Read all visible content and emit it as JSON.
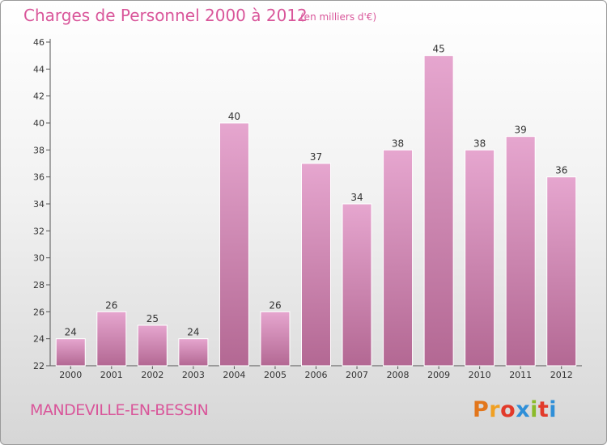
{
  "header": {
    "title": "Charges de Personnel 2000 à 2012",
    "subtitle": "(en milliers d'€)"
  },
  "footer": {
    "commune": "MANDEVILLE-EN-BESSIN",
    "logo": "Proxiti",
    "logo_colors": [
      "#e2761b",
      "#f0a023",
      "#e23a2a",
      "#2f8fd8",
      "#8bbb2a",
      "#e23a2a",
      "#2f8fd8"
    ]
  },
  "chart_data": {
    "type": "bar",
    "title": "Charges de Personnel 2000 à 2012",
    "subtitle": "(en milliers d'€)",
    "categories": [
      "2000",
      "2001",
      "2002",
      "2003",
      "2004",
      "2005",
      "2006",
      "2007",
      "2008",
      "2009",
      "2010",
      "2011",
      "2012"
    ],
    "values": [
      24,
      26,
      25,
      24,
      40,
      26,
      37,
      34,
      38,
      45,
      38,
      39,
      36
    ],
    "ylim": [
      22,
      46
    ],
    "yticks": [
      22,
      24,
      26,
      28,
      30,
      32,
      34,
      36,
      38,
      40,
      42,
      44,
      46
    ],
    "xlabel": "",
    "ylabel": "",
    "grid": false,
    "bar_color": "#d98ab8"
  }
}
